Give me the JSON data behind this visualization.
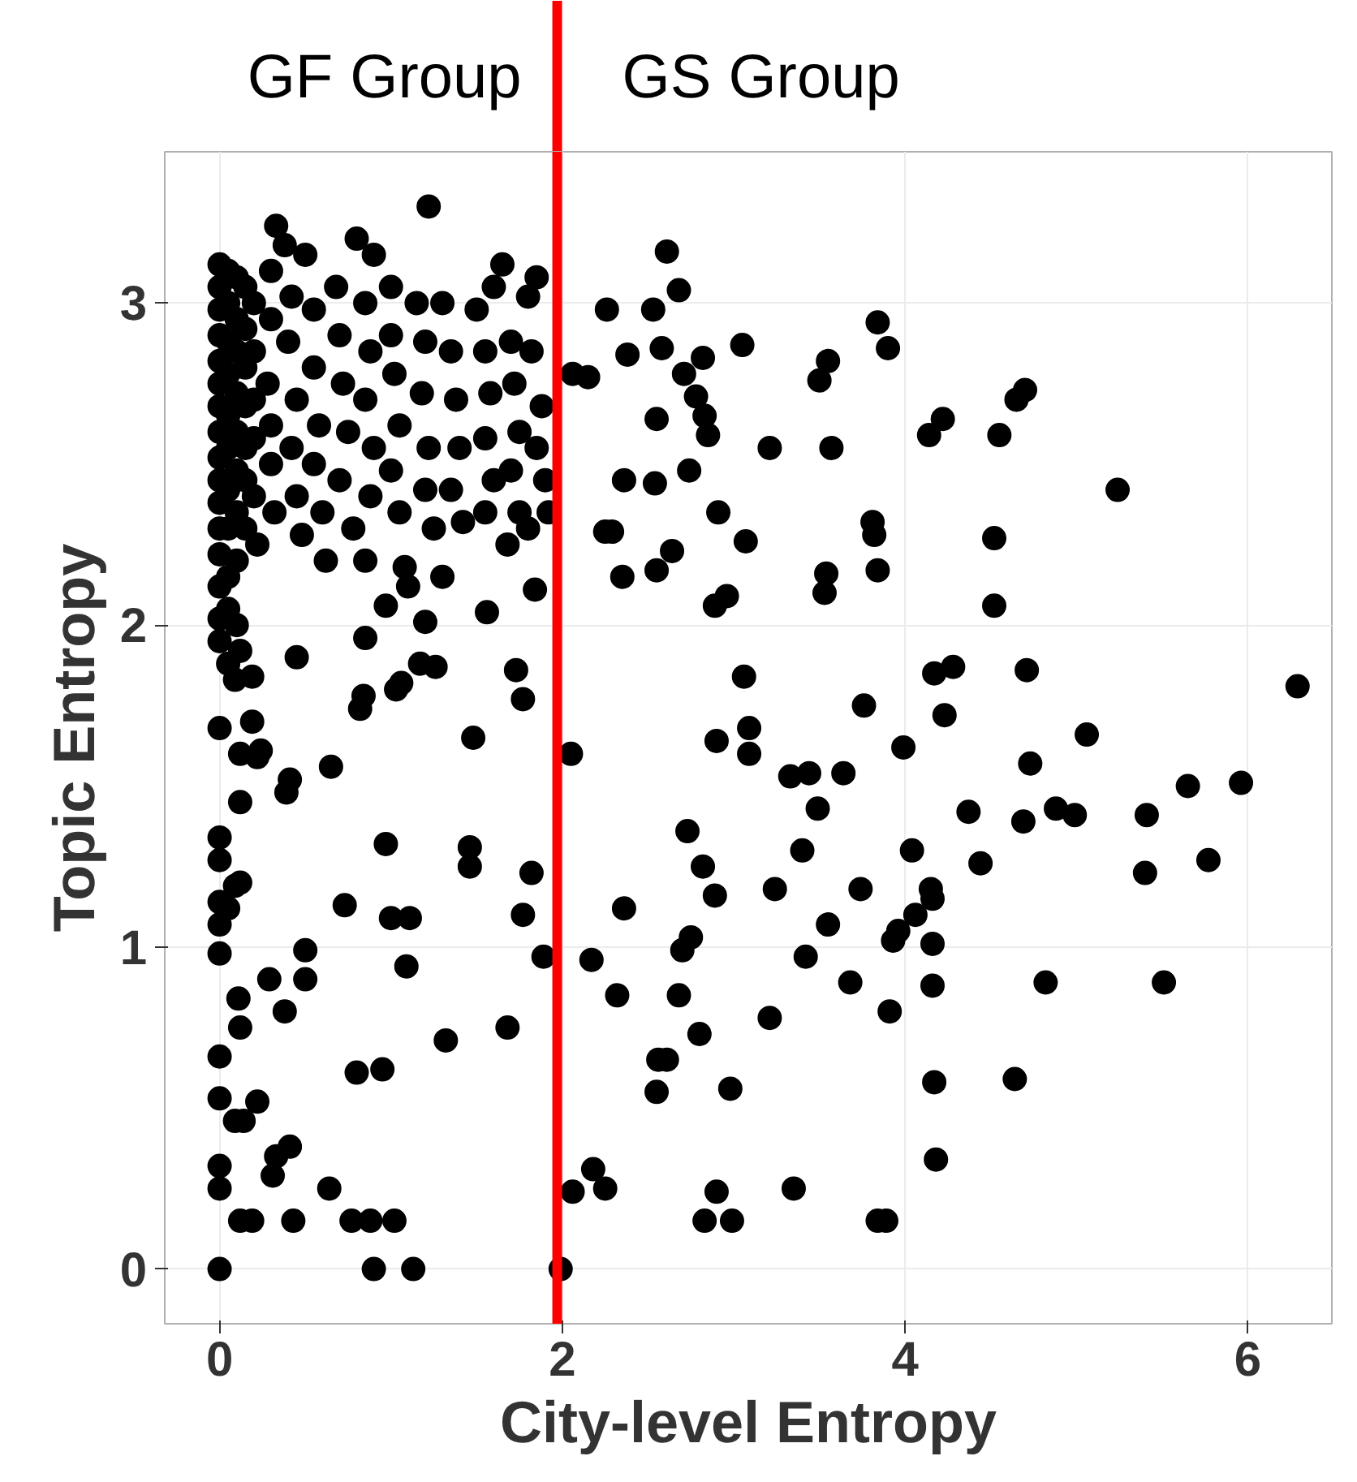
{
  "chart_data": {
    "type": "scatter",
    "xlabel": "City-level Entropy",
    "ylabel": "Topic Entropy",
    "annotations": [
      "GF Group",
      "GS Group"
    ],
    "xlim": [
      -0.32,
      6.49
    ],
    "ylim": [
      -0.17,
      3.47
    ],
    "xticks": [
      0,
      2,
      4,
      6
    ],
    "yticks": [
      0,
      1,
      2,
      3
    ],
    "grid": true,
    "marker": "circle",
    "ref_lines": [
      {
        "axis": "x",
        "value": 1.97,
        "color": "#ff0000"
      }
    ],
    "series": [
      {
        "color": "#000000",
        "x": [
          1.22,
          1.99,
          2.06,
          2.18,
          2.25,
          2.05,
          2.17,
          2.36,
          2.32,
          2.55,
          2.56,
          2.61,
          2.68,
          2.7,
          2.75,
          2.73,
          2.8,
          2.82,
          2.89,
          2.83,
          2.9,
          2.99,
          2.98,
          2.9,
          3.06,
          3.09,
          3.09,
          3.24,
          3.21,
          3.35,
          3.33,
          3.4,
          3.42,
          3.44,
          3.49,
          3.55,
          3.64,
          3.68,
          3.74,
          3.76,
          3.84,
          3.89,
          3.91,
          3.93,
          3.96,
          3.99,
          4.04,
          4.06,
          4.15,
          4.16,
          4.16,
          4.16,
          4.17,
          4.18,
          4.17,
          4.23,
          4.28,
          4.37,
          4.44,
          4.64,
          4.69,
          4.73,
          4.71,
          4.82,
          4.88,
          4.99,
          5.06,
          5.24,
          5.4,
          5.41,
          5.51,
          5.65,
          5.77,
          5.96,
          6.29,
          2.26,
          2.06,
          2.15,
          2.25,
          2.29,
          2.36,
          2.35,
          2.38,
          2.53,
          2.55,
          2.54,
          2.55,
          2.58,
          2.61,
          2.68,
          2.64,
          2.71,
          2.78,
          2.74,
          2.83,
          2.82,
          2.85,
          2.91,
          2.89,
          2.96,
          3.07,
          3.05,
          3.21,
          3.5,
          3.55,
          3.54,
          3.53,
          3.57,
          3.81,
          3.82,
          3.84,
          3.84,
          3.9,
          4.14,
          4.22,
          4.55,
          4.52,
          4.52,
          4.65,
          4.7,
          0,
          0.9,
          1.13,
          0.19,
          0.43,
          0.12,
          0.33,
          0.41,
          0.31,
          0,
          0,
          0,
          0,
          0.09,
          0.14,
          0.22,
          0.64,
          0.77,
          0.88,
          1.02,
          0.8,
          0.95,
          1.32,
          1.68,
          0.11,
          0.29,
          0.5,
          0.38,
          0.12,
          0.5,
          0,
          0,
          0,
          0.09,
          0.05,
          0.12,
          0.73,
          1.0,
          1.11,
          1.09,
          0.97,
          1.46,
          1.46,
          1.77,
          1.82,
          1.89,
          0,
          0,
          0.12,
          0.22,
          0.24,
          0.39,
          0.41,
          0.12,
          0.65,
          1.48,
          0,
          0.45,
          0.19,
          0.09,
          0.19,
          0.05,
          0.84,
          0.82,
          1.03,
          1.06,
          0.85,
          0.97,
          1.2,
          1.17,
          1.26,
          1.56,
          1.73,
          1.77,
          1.84,
          0,
          0,
          0,
          0,
          0,
          0,
          0,
          0,
          0,
          0,
          0,
          0,
          0,
          0,
          0,
          0,
          0.05,
          0.05,
          0.05,
          0.05,
          0.05,
          0.05,
          0.05,
          0.05,
          0.05,
          0.05,
          0.1,
          0.1,
          0.1,
          0.1,
          0.1,
          0.1,
          0.1,
          0.1,
          0.1,
          0.12,
          0.15,
          0.15,
          0.15,
          0.15,
          0.15,
          0.15,
          0.15,
          0.2,
          0.2,
          0.2,
          0.2,
          0.2,
          0.22,
          0.3,
          0.3,
          0.28,
          0.3,
          0.3,
          0.32,
          0.33,
          0.38,
          0.42,
          0.4,
          0.45,
          0.42,
          0.45,
          0.48,
          0.5,
          0.55,
          0.55,
          0.58,
          0.55,
          0.6,
          0.62,
          0.68,
          0.7,
          0.72,
          0.75,
          0.7,
          0.78,
          0.8,
          0.85,
          0.88,
          0.85,
          0.9,
          0.88,
          0.85,
          0.9,
          1.0,
          1.0,
          1.02,
          1.05,
          1.0,
          1.05,
          1.08,
          1.1,
          1.15,
          1.2,
          1.18,
          1.22,
          1.2,
          1.25,
          1.3,
          1.3,
          1.35,
          1.38,
          1.4,
          1.35,
          1.42,
          1.5,
          1.55,
          1.58,
          1.55,
          1.6,
          1.55,
          1.6,
          1.65,
          1.7,
          1.72,
          1.75,
          1.7,
          1.75,
          1.68,
          1.8,
          1.85,
          1.82,
          1.88,
          1.85,
          1.9,
          1.92,
          1.8
        ],
        "values": [
          3.3,
          0,
          0.24,
          0.31,
          0.25,
          1.6,
          0.96,
          1.12,
          0.85,
          0.55,
          0.65,
          0.65,
          0.85,
          0.99,
          1.03,
          1.36,
          0.73,
          1.25,
          1.16,
          0.15,
          0.24,
          0.15,
          0.56,
          1.64,
          1.84,
          1.68,
          1.6,
          1.18,
          0.78,
          0.25,
          1.53,
          1.3,
          0.97,
          1.54,
          1.43,
          1.07,
          1.54,
          0.89,
          1.18,
          1.75,
          0.15,
          0.15,
          0.8,
          1.02,
          1.05,
          1.62,
          1.3,
          1.1,
          1.18,
          1.15,
          1.01,
          0.88,
          0.58,
          0.34,
          1.85,
          1.72,
          1.87,
          1.42,
          1.26,
          0.59,
          1.39,
          1.57,
          1.86,
          0.89,
          1.43,
          1.41,
          1.66,
          2.42,
          1.23,
          1.41,
          0.89,
          1.5,
          1.27,
          1.51,
          1.81,
          2.98,
          2.78,
          2.77,
          2.29,
          2.29,
          2.45,
          2.15,
          2.84,
          2.98,
          2.64,
          2.44,
          2.17,
          2.86,
          3.16,
          3.04,
          2.23,
          2.78,
          2.71,
          2.48,
          2.65,
          2.83,
          2.59,
          2.35,
          2.06,
          2.09,
          2.26,
          2.87,
          2.55,
          2.76,
          2.82,
          2.16,
          2.1,
          2.55,
          2.32,
          2.28,
          2.17,
          2.94,
          2.86,
          2.59,
          2.64,
          2.59,
          2.27,
          2.06,
          2.7,
          2.73,
          0,
          0,
          0,
          0.15,
          0.15,
          0.15,
          0.35,
          0.38,
          0.29,
          0.25,
          0.32,
          0.53,
          0.66,
          0.46,
          0.46,
          0.52,
          0.25,
          0.15,
          0.15,
          0.15,
          0.61,
          0.62,
          0.71,
          0.75,
          0.84,
          0.9,
          0.9,
          0.8,
          0.75,
          0.99,
          0.98,
          1.07,
          1.14,
          1.19,
          1.12,
          1.2,
          1.13,
          1.09,
          1.09,
          0.94,
          1.32,
          1.31,
          1.25,
          1.1,
          1.23,
          0.97,
          1.34,
          1.27,
          1.6,
          1.59,
          1.61,
          1.48,
          1.52,
          1.45,
          1.56,
          1.65,
          1.68,
          1.9,
          1.7,
          1.83,
          1.84,
          1.88,
          1.78,
          1.74,
          1.8,
          1.82,
          1.96,
          2.06,
          2.01,
          1.88,
          1.87,
          2.04,
          1.86,
          1.77,
          2.11,
          3.12,
          3.05,
          2.98,
          2.9,
          2.82,
          2.75,
          2.68,
          2.6,
          2.52,
          2.45,
          2.38,
          2.3,
          2.22,
          2.12,
          2.02,
          1.95,
          3.1,
          3.0,
          2.88,
          2.78,
          2.65,
          2.55,
          2.42,
          2.3,
          2.15,
          2.05,
          3.08,
          2.95,
          2.85,
          2.72,
          2.6,
          2.48,
          2.35,
          2.2,
          2.0,
          1.92,
          3.05,
          2.92,
          2.8,
          2.68,
          2.55,
          2.45,
          2.3,
          3.0,
          2.85,
          2.7,
          2.58,
          2.4,
          2.25,
          3.1,
          2.95,
          2.75,
          2.62,
          2.5,
          2.35,
          3.24,
          3.18,
          3.02,
          2.88,
          2.7,
          2.55,
          2.4,
          2.28,
          3.15,
          2.98,
          2.8,
          2.62,
          2.5,
          2.35,
          2.2,
          3.05,
          2.9,
          2.75,
          2.6,
          2.45,
          2.3,
          3.2,
          3.0,
          2.85,
          2.7,
          2.55,
          2.4,
          2.2,
          3.15,
          3.05,
          2.9,
          2.78,
          2.62,
          2.48,
          2.35,
          2.18,
          2.12,
          3.0,
          2.88,
          2.72,
          2.55,
          2.42,
          2.3,
          2.15,
          3.0,
          2.85,
          2.7,
          2.55,
          2.42,
          2.32,
          2.98,
          2.85,
          2.72,
          2.58,
          2.45,
          2.35,
          3.05,
          3.12,
          2.88,
          2.75,
          2.6,
          2.48,
          2.35,
          2.25,
          3.02,
          3.08,
          2.85,
          2.68,
          2.55,
          2.45,
          2.35,
          2.3
        ]
      }
    ]
  }
}
